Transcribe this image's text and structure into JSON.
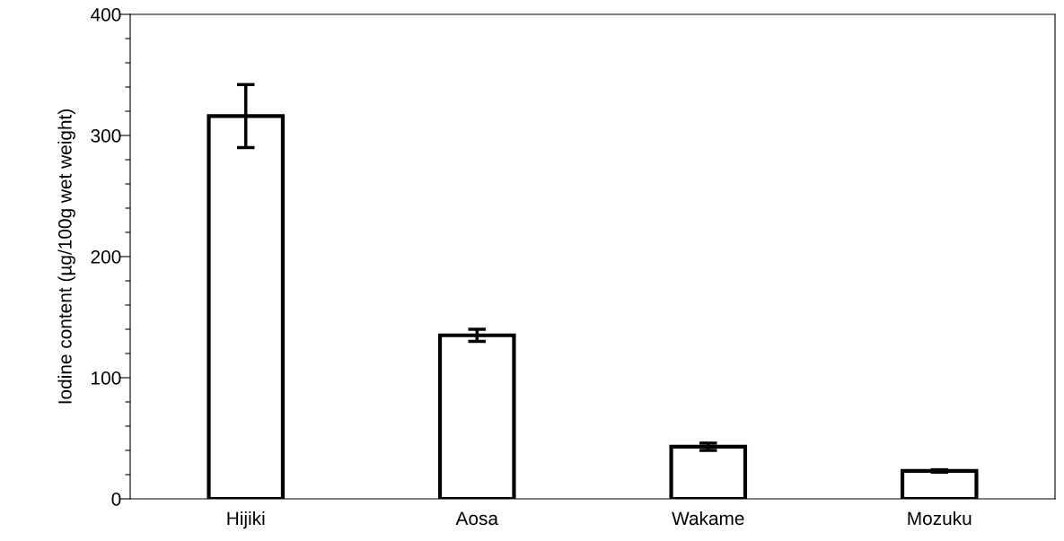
{
  "chart_data": {
    "type": "bar",
    "ylabel": "Iodine content (µg/100g wet weight)",
    "categories": [
      "Hijiki",
      "Aosa",
      "Wakame",
      "Mozuku"
    ],
    "values": [
      316,
      135,
      43,
      23
    ],
    "errors": [
      26,
      5,
      3,
      1
    ],
    "color": "#ffffff",
    "ylim": [
      0,
      400
    ],
    "yticks": [
      0,
      {
        "value": 20,
        "label": null
      },
      {
        "value": 40,
        "label": null
      },
      {
        "value": 60,
        "label": null
      },
      {
        "value": 80,
        "label": null
      },
      100,
      {
        "value": 120,
        "label": null
      },
      {
        "value": 140,
        "label": null
      },
      {
        "value": 160,
        "label": null
      },
      {
        "value": 180,
        "label": null
      },
      200,
      {
        "value": 220,
        "label": null
      },
      {
        "value": 240,
        "label": null
      },
      {
        "value": 260,
        "label": null
      },
      {
        "value": 280,
        "label": null
      },
      300,
      {
        "value": 320,
        "label": null
      },
      {
        "value": 340,
        "label": null
      },
      {
        "value": 360,
        "label": null
      },
      {
        "value": 380,
        "label": null
      },
      400
    ],
    "grid": false
  }
}
